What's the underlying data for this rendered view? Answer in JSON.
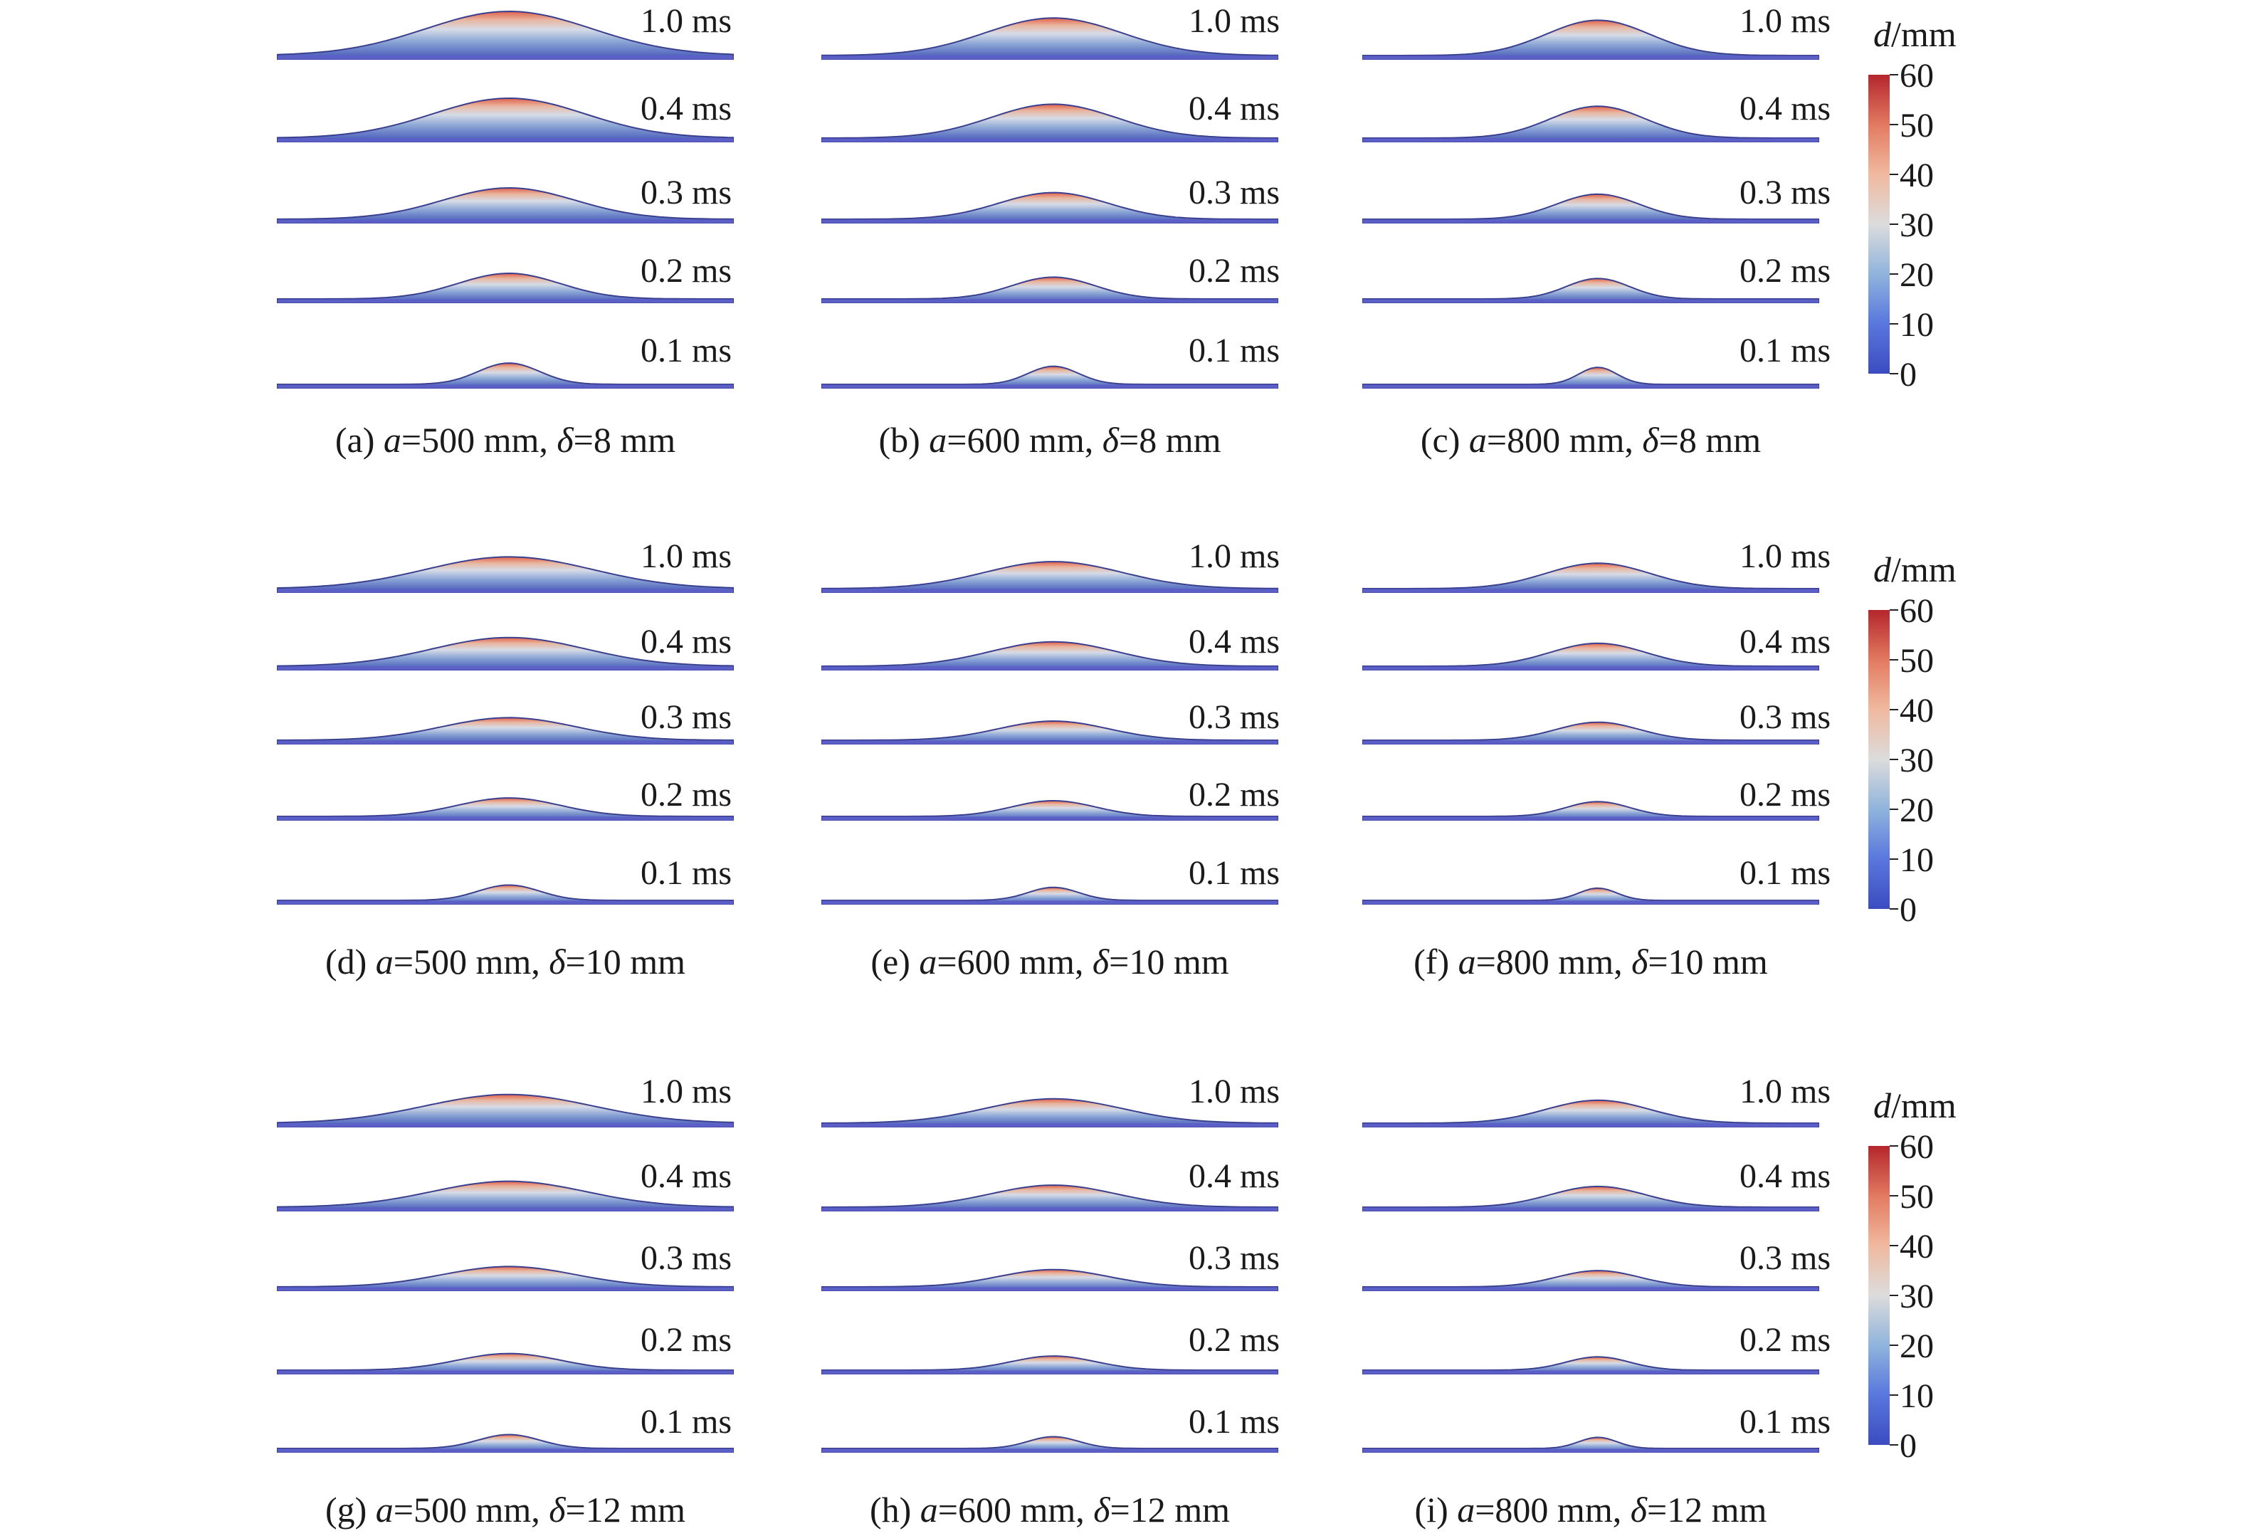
{
  "time_labels": [
    "1.0 ms",
    "0.4 ms",
    "0.3 ms",
    "0.2 ms",
    "0.1 ms"
  ],
  "time_values_ms": [
    1.0,
    0.4,
    0.3,
    0.2,
    0.1
  ],
  "panels": [
    {
      "id": "a",
      "letter": "(a)",
      "a_mm": "500",
      "delta_mm": "8"
    },
    {
      "id": "b",
      "letter": "(b)",
      "a_mm": "600",
      "delta_mm": "8"
    },
    {
      "id": "c",
      "letter": "(c)",
      "a_mm": "800",
      "delta_mm": "8"
    },
    {
      "id": "d",
      "letter": "(d)",
      "a_mm": "500",
      "delta_mm": "10"
    },
    {
      "id": "e",
      "letter": "(e)",
      "a_mm": "600",
      "delta_mm": "10"
    },
    {
      "id": "f",
      "letter": "(f)",
      "a_mm": "800",
      "delta_mm": "10"
    },
    {
      "id": "g",
      "letter": "(g)",
      "a_mm": "500",
      "delta_mm": "12"
    },
    {
      "id": "h",
      "letter": "(h)",
      "a_mm": "600",
      "delta_mm": "12"
    },
    {
      "id": "i",
      "letter": "(i)",
      "a_mm": "800",
      "delta_mm": "12"
    }
  ],
  "caption_parts": {
    "a_symbol": "a",
    "delta_symbol": "δ",
    "equals": "=",
    "unit": " mm",
    "sep": ", "
  },
  "colorbar": {
    "title_symbol": "d",
    "title_unit": "/mm",
    "ticks": [
      "60",
      "50",
      "40",
      "30",
      "20",
      "10",
      "0"
    ],
    "range": [
      0,
      60
    ],
    "colors": [
      "#3b4cc0",
      "#6282ea",
      "#8db0d8",
      "#b9d0e8",
      "#dddddd",
      "#f2b597",
      "#e9785d",
      "#c0282d"
    ]
  }
}
